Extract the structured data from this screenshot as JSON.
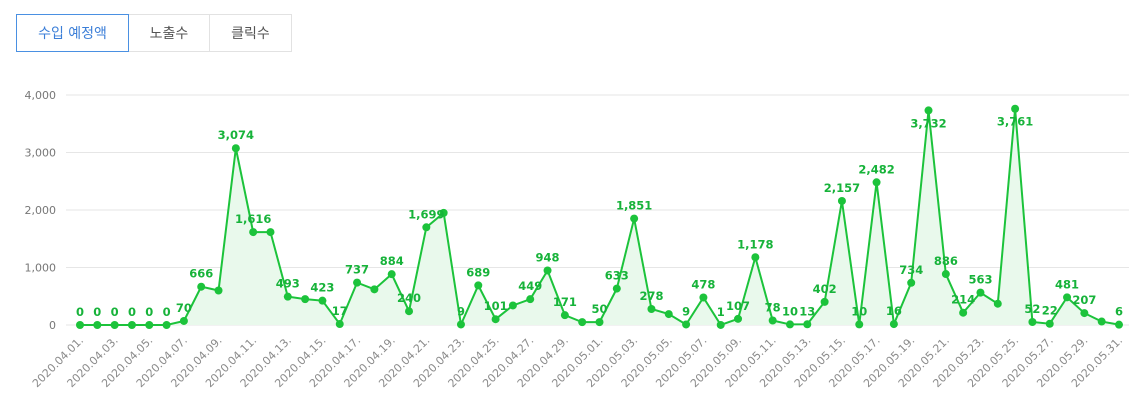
{
  "tabs": [
    {
      "label": "수입 예정액",
      "active": true
    },
    {
      "label": "노출수",
      "active": false
    },
    {
      "label": "클릭수",
      "active": false
    }
  ],
  "colors": {
    "line": "#1cc33b",
    "fill": "#e9f9ec",
    "grid": "#e6e6e6",
    "active_tab": "#4a90e2",
    "label": "#17b33a"
  },
  "chart_data": {
    "type": "area",
    "ylim": [
      0,
      4000
    ],
    "yticks": [
      "0",
      "1,000",
      "2,000",
      "3,000",
      "4,000"
    ],
    "ytick_values": [
      0,
      1000,
      2000,
      3000,
      4000
    ],
    "x": [
      "2020.04.01.",
      "2020.04.02.",
      "2020.04.03.",
      "2020.04.04.",
      "2020.04.05.",
      "2020.04.06.",
      "2020.04.07.",
      "2020.04.08.",
      "2020.04.09.",
      "2020.04.10.",
      "2020.04.11.",
      "2020.04.12.",
      "2020.04.13.",
      "2020.04.14.",
      "2020.04.15.",
      "2020.04.16.",
      "2020.04.17.",
      "2020.04.18.",
      "2020.04.19.",
      "2020.04.20.",
      "2020.04.21.",
      "2020.04.22.",
      "2020.04.23.",
      "2020.04.24.",
      "2020.04.25.",
      "2020.04.26.",
      "2020.04.27.",
      "2020.04.28.",
      "2020.04.29.",
      "2020.04.30.",
      "2020.05.01.",
      "2020.05.02.",
      "2020.05.03.",
      "2020.05.04.",
      "2020.05.05.",
      "2020.05.06.",
      "2020.05.07.",
      "2020.05.08.",
      "2020.05.09.",
      "2020.05.10.",
      "2020.05.11.",
      "2020.05.12.",
      "2020.05.13.",
      "2020.05.14.",
      "2020.05.15.",
      "2020.05.16.",
      "2020.05.17.",
      "2020.05.18.",
      "2020.05.19.",
      "2020.05.20.",
      "2020.05.21.",
      "2020.05.22.",
      "2020.05.23.",
      "2020.05.24.",
      "2020.05.25.",
      "2020.05.26.",
      "2020.05.27.",
      "2020.05.28.",
      "2020.05.29.",
      "2020.05.30.",
      "2020.05.31."
    ],
    "xtick_labels": [
      "2020.04.01.",
      "2020.04.03.",
      "2020.04.05.",
      "2020.04.07.",
      "2020.04.09.",
      "2020.04.11.",
      "2020.04.13.",
      "2020.04.15.",
      "2020.04.17.",
      "2020.04.19.",
      "2020.04.21.",
      "2020.04.23.",
      "2020.04.25.",
      "2020.04.27.",
      "2020.04.29.",
      "2020.05.01.",
      "2020.05.03.",
      "2020.05.05.",
      "2020.05.07.",
      "2020.05.09.",
      "2020.05.11.",
      "2020.05.13.",
      "2020.05.15.",
      "2020.05.17.",
      "2020.05.19.",
      "2020.05.21.",
      "2020.05.23.",
      "2020.05.25.",
      "2020.05.27.",
      "2020.05.29.",
      "2020.05.31."
    ],
    "values": [
      0,
      0,
      0,
      0,
      0,
      0,
      70,
      666,
      600,
      3074,
      1616,
      1616,
      493,
      450,
      423,
      17,
      737,
      620,
      884,
      240,
      1699,
      1950,
      9,
      689,
      101,
      340,
      449,
      948,
      171,
      50,
      50,
      633,
      1851,
      278,
      190,
      9,
      478,
      1,
      107,
      1178,
      78,
      10,
      13,
      402,
      2157,
      10,
      2482,
      16,
      734,
      3732,
      886,
      214,
      563,
      370,
      3761,
      52,
      22,
      481,
      207,
      60,
      6
    ],
    "data_labels": [
      "0",
      "0",
      "0",
      "0",
      "0",
      "0",
      "70",
      "666",
      "",
      "3,074",
      "1,616",
      "",
      "493",
      "",
      "423",
      "17",
      "737",
      "",
      "884",
      "240",
      "1,699",
      "",
      "9",
      "689",
      "101",
      "",
      "449",
      "948",
      "171",
      "",
      "50",
      "633",
      "1,851",
      "278",
      "",
      "9",
      "478",
      "1",
      "107",
      "1,178",
      "78",
      "10",
      "13",
      "402",
      "2,157",
      "10",
      "2,482",
      "16",
      "734",
      "3,732",
      "886",
      "214",
      "563",
      "",
      "3,761",
      "52",
      "22",
      "481",
      "207",
      "",
      "6"
    ],
    "grid": true
  }
}
